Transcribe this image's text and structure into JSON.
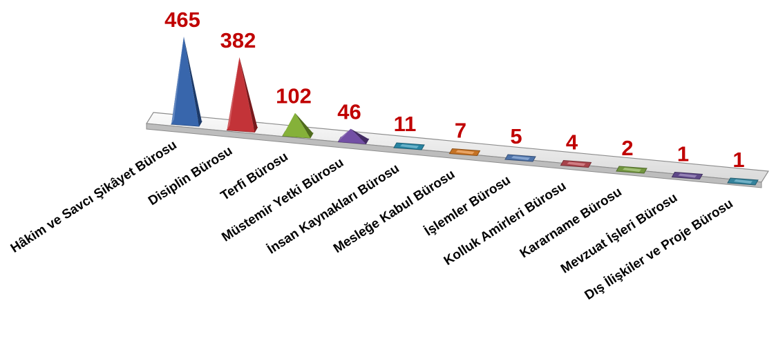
{
  "chart_data": {
    "type": "bar",
    "style": "3d-pyramid",
    "categories": [
      "Hâkim ve Savcı Şikâyet Bürosu",
      "Disiplin Bürosu",
      "Terfi Bürosu",
      "Müstemir Yetki Bürosu",
      "İnsan Kaynakları Bürosu",
      "Mesleğe Kabul Bürosu",
      "İşlemler Bürosu",
      "Kolluk Amirleri Bürosu",
      "Kararname Bürosu",
      "Mevzuat İşleri Bürosu",
      "Dış İlişkiler ve Proje Bürosu"
    ],
    "values": [
      465,
      382,
      102,
      46,
      11,
      7,
      5,
      4,
      2,
      1,
      1
    ],
    "data_labels": [
      "465",
      "382",
      "102",
      "46",
      "11",
      "7",
      "5",
      "4",
      "2",
      "1",
      "1"
    ],
    "colors": [
      "#2e5ea8",
      "#c0282d",
      "#7fad2f",
      "#6c46a0",
      "#2f9bbf",
      "#e8862a",
      "#5b86c6",
      "#c64f58",
      "#86b04a",
      "#6e55a0",
      "#3e9ab8"
    ],
    "title": "",
    "xlabel": "",
    "ylabel": "",
    "legend": "none",
    "grid": false
  }
}
